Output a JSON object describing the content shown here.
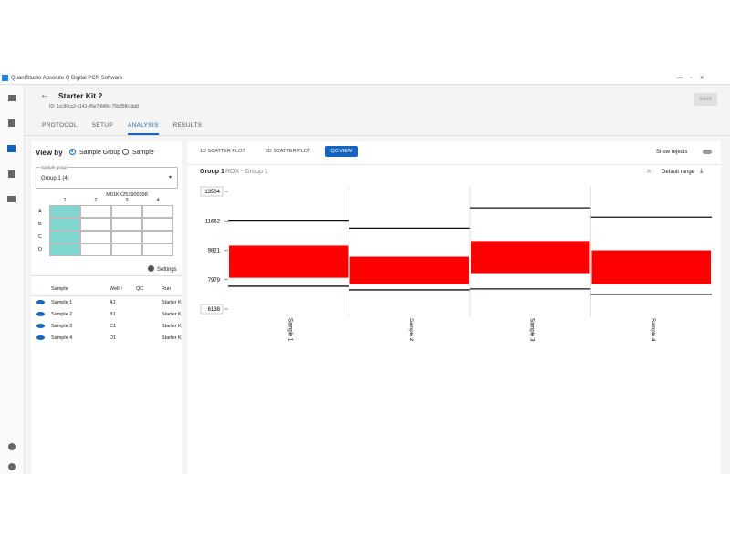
{
  "window_title": "QuantStudio Absolute Q Digital PCR Software",
  "header": {
    "title": "Starter Kit 2",
    "id": "ID: 1cc90cc2-c141-45e7-8d9d-75b35fb1da8",
    "save": "Save"
  },
  "tabs": [
    "PROTOCOL",
    "SETUP",
    "ANALYSIS",
    "RESULTS"
  ],
  "active_tab": 2,
  "left_panel": {
    "view_by": "View by",
    "options": [
      "Sample Group",
      "Sample"
    ],
    "sample_group_label": "Sample group",
    "sample_group_value": "Group 1 (4)",
    "plate": {
      "id": "M01KK253900398",
      "columns": [
        "1",
        "2",
        "3",
        "4"
      ],
      "rows": [
        "A",
        "B",
        "C",
        "D"
      ]
    },
    "settings": "Settings",
    "table": {
      "headers": [
        "Sample",
        "Well ↑",
        "QC",
        "Run"
      ],
      "rows": [
        {
          "sample": "Sample 1",
          "well": "A1",
          "run": "Starter K"
        },
        {
          "sample": "Sample 2",
          "well": "B1",
          "run": "Starter K"
        },
        {
          "sample": "Sample 3",
          "well": "C1",
          "run": "Starter K"
        },
        {
          "sample": "Sample 4",
          "well": "D1",
          "run": "Starter K"
        }
      ]
    }
  },
  "plot_tabs": [
    "1D SCATTER PLOT",
    "2D SCATTER PLOT",
    "QC VIEW"
  ],
  "active_plot_tab": 2,
  "show_rejects": "Show rejects",
  "group": "Group 1",
  "group_subtitle": "ROX - Group 1",
  "default_range": "Default range",
  "chart_data": {
    "type": "scatter",
    "categories": [
      "Sample 1",
      "Sample 2",
      "Sample 3",
      "Sample 4"
    ],
    "color": "#ff0000",
    "band_low": [
      8100,
      7690,
      8390,
      7690
    ],
    "band_high": [
      10110,
      9420,
      10400,
      9820
    ],
    "upper_limits": [
      11700,
      11200,
      12470,
      11890
    ],
    "lower_limits": [
      7570,
      7340,
      7400,
      7060
    ],
    "ylim": [
      6138,
      13504
    ],
    "yticks": [
      6138,
      7979,
      9821,
      11662,
      13504
    ]
  }
}
